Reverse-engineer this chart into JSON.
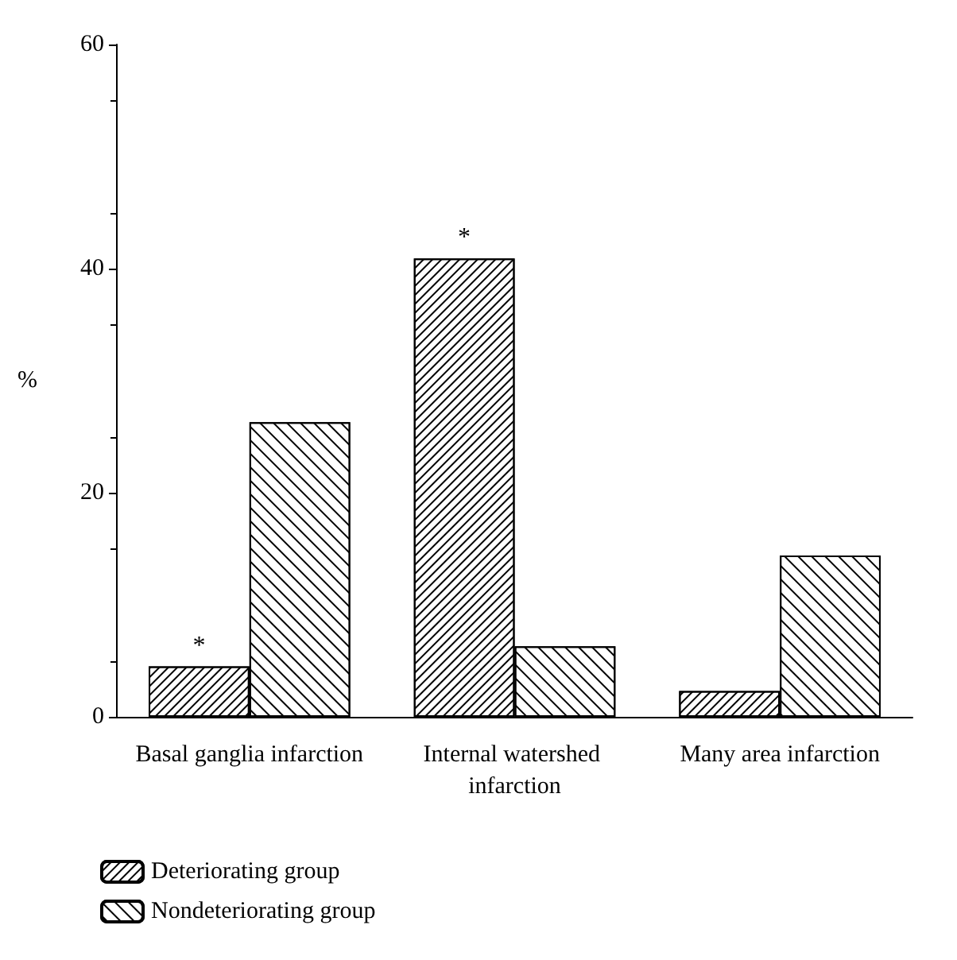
{
  "chart_data": {
    "type": "bar",
    "ylabel": "%",
    "categories": [
      "Basal ganglia infarction",
      "Internal watershed infarction",
      "Many area infarction"
    ],
    "series": [
      {
        "name": "Deteriorating group",
        "color": "#ffffff",
        "values": [
          4.5,
          40.9,
          2.3
        ]
      },
      {
        "name": "Nondeteriorating group",
        "color": "#ffffff",
        "values": [
          26.3,
          6.3,
          14.4
        ]
      }
    ],
    "ylim": [
      0,
      60
    ],
    "yticks": [
      0,
      20,
      40,
      60
    ],
    "grid": false,
    "legend": "bottom left",
    "annotations": [
      {
        "text": "*",
        "x": "Basal ganglia infarction",
        "y": 4.5
      },
      {
        "text": "*",
        "x": "Internal watershed infarction",
        "y": 40.9
      }
    ]
  }
}
